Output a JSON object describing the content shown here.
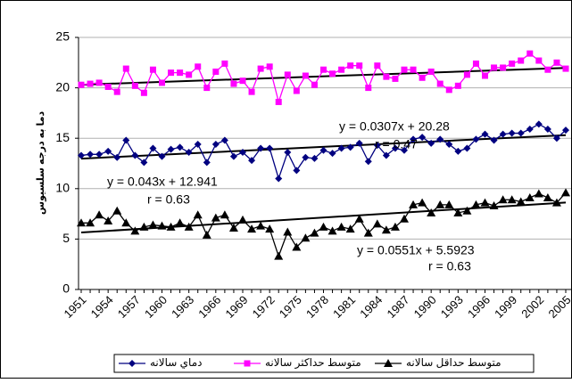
{
  "chart_data": {
    "type": "line",
    "y_label": "دما به درجه سلسيوس",
    "categories": [
      "1951",
      null,
      null,
      "1954",
      null,
      null,
      "1957",
      null,
      null,
      "1960",
      null,
      null,
      "1963",
      null,
      null,
      "1966",
      null,
      null,
      "1969",
      null,
      null,
      "1972",
      null,
      null,
      "1975",
      null,
      null,
      "1978",
      null,
      null,
      "1981",
      null,
      null,
      "1984",
      null,
      null,
      "1987",
      null,
      null,
      "1990",
      null,
      null,
      "1993",
      null,
      null,
      "1996",
      null,
      null,
      "1999",
      null,
      null,
      "2002",
      null,
      null,
      "2005"
    ],
    "ylim": [
      0,
      25
    ],
    "yticks": [
      0,
      5,
      10,
      15,
      20,
      25
    ],
    "grid": true,
    "series": [
      {
        "name": "دماي سالانه",
        "color": "#000080",
        "marker": "diamond",
        "values": [
          13.3,
          13.4,
          13.4,
          13.7,
          13.1,
          14.8,
          13.3,
          12.6,
          14.0,
          13.2,
          13.9,
          14.1,
          13.6,
          14.4,
          12.6,
          14.4,
          14.8,
          13.2,
          13.6,
          12.8,
          14.0,
          14.0,
          11.0,
          13.6,
          11.8,
          13.1,
          13.0,
          13.8,
          13.5,
          14.0,
          14.1,
          14.5,
          12.7,
          14.3,
          13.3,
          14.0,
          13.8,
          14.9,
          15.1,
          14.5,
          14.9,
          14.4,
          13.7,
          14.0,
          14.9,
          15.4,
          14.8,
          15.4,
          15.5,
          15.5,
          15.9,
          16.4,
          15.9,
          15.0,
          15.8
        ],
        "trend": [
          12.98,
          15.31
        ]
      },
      {
        "name": "متوسط حداكثر سالانه",
        "color": "#ff00ff",
        "marker": "square",
        "values": [
          20.3,
          20.4,
          20.5,
          20.1,
          19.6,
          21.9,
          20.2,
          19.5,
          21.8,
          20.5,
          21.5,
          21.5,
          21.3,
          22.1,
          20.0,
          21.6,
          22.4,
          20.4,
          20.7,
          19.6,
          21.9,
          22.1,
          18.6,
          21.3,
          19.7,
          21.2,
          20.3,
          21.8,
          21.4,
          21.8,
          22.2,
          22.2,
          20.0,
          22.2,
          21.1,
          20.9,
          21.8,
          21.8,
          21.0,
          21.6,
          20.4,
          19.8,
          20.2,
          21.3,
          22.4,
          21.2,
          22.0,
          22.0,
          22.4,
          22.7,
          23.4,
          22.7,
          21.8,
          22.5,
          21.9
        ],
        "trend": [
          20.31,
          21.97
        ]
      },
      {
        "name": "متوسط حداقل سالانه",
        "color": "#000000",
        "marker": "triangle",
        "values": [
          6.6,
          6.6,
          7.4,
          6.8,
          7.8,
          6.6,
          5.8,
          6.2,
          6.4,
          6.3,
          6.2,
          6.6,
          6.2,
          7.4,
          5.4,
          7.1,
          7.4,
          6.1,
          6.9,
          6.0,
          6.3,
          6.0,
          3.3,
          5.7,
          4.2,
          5.1,
          5.6,
          6.2,
          5.8,
          6.2,
          6.0,
          7.0,
          5.6,
          6.5,
          5.9,
          6.2,
          7.0,
          8.4,
          8.6,
          7.6,
          8.4,
          8.4,
          7.6,
          7.8,
          8.4,
          8.6,
          8.3,
          8.9,
          8.9,
          8.7,
          9.1,
          9.5,
          9.1,
          8.6,
          9.6
        ],
        "trend": [
          5.65,
          8.62
        ]
      }
    ],
    "annotations": [
      {
        "equation": "y = 0.0307x + 20.28",
        "r": "r = 0.47"
      },
      {
        "equation": "y = 0.043x + 12.941",
        "r": "r = 0.63"
      },
      {
        "equation": "y = 0.0551x + 5.5923",
        "r": "r = 0.63"
      }
    ]
  }
}
